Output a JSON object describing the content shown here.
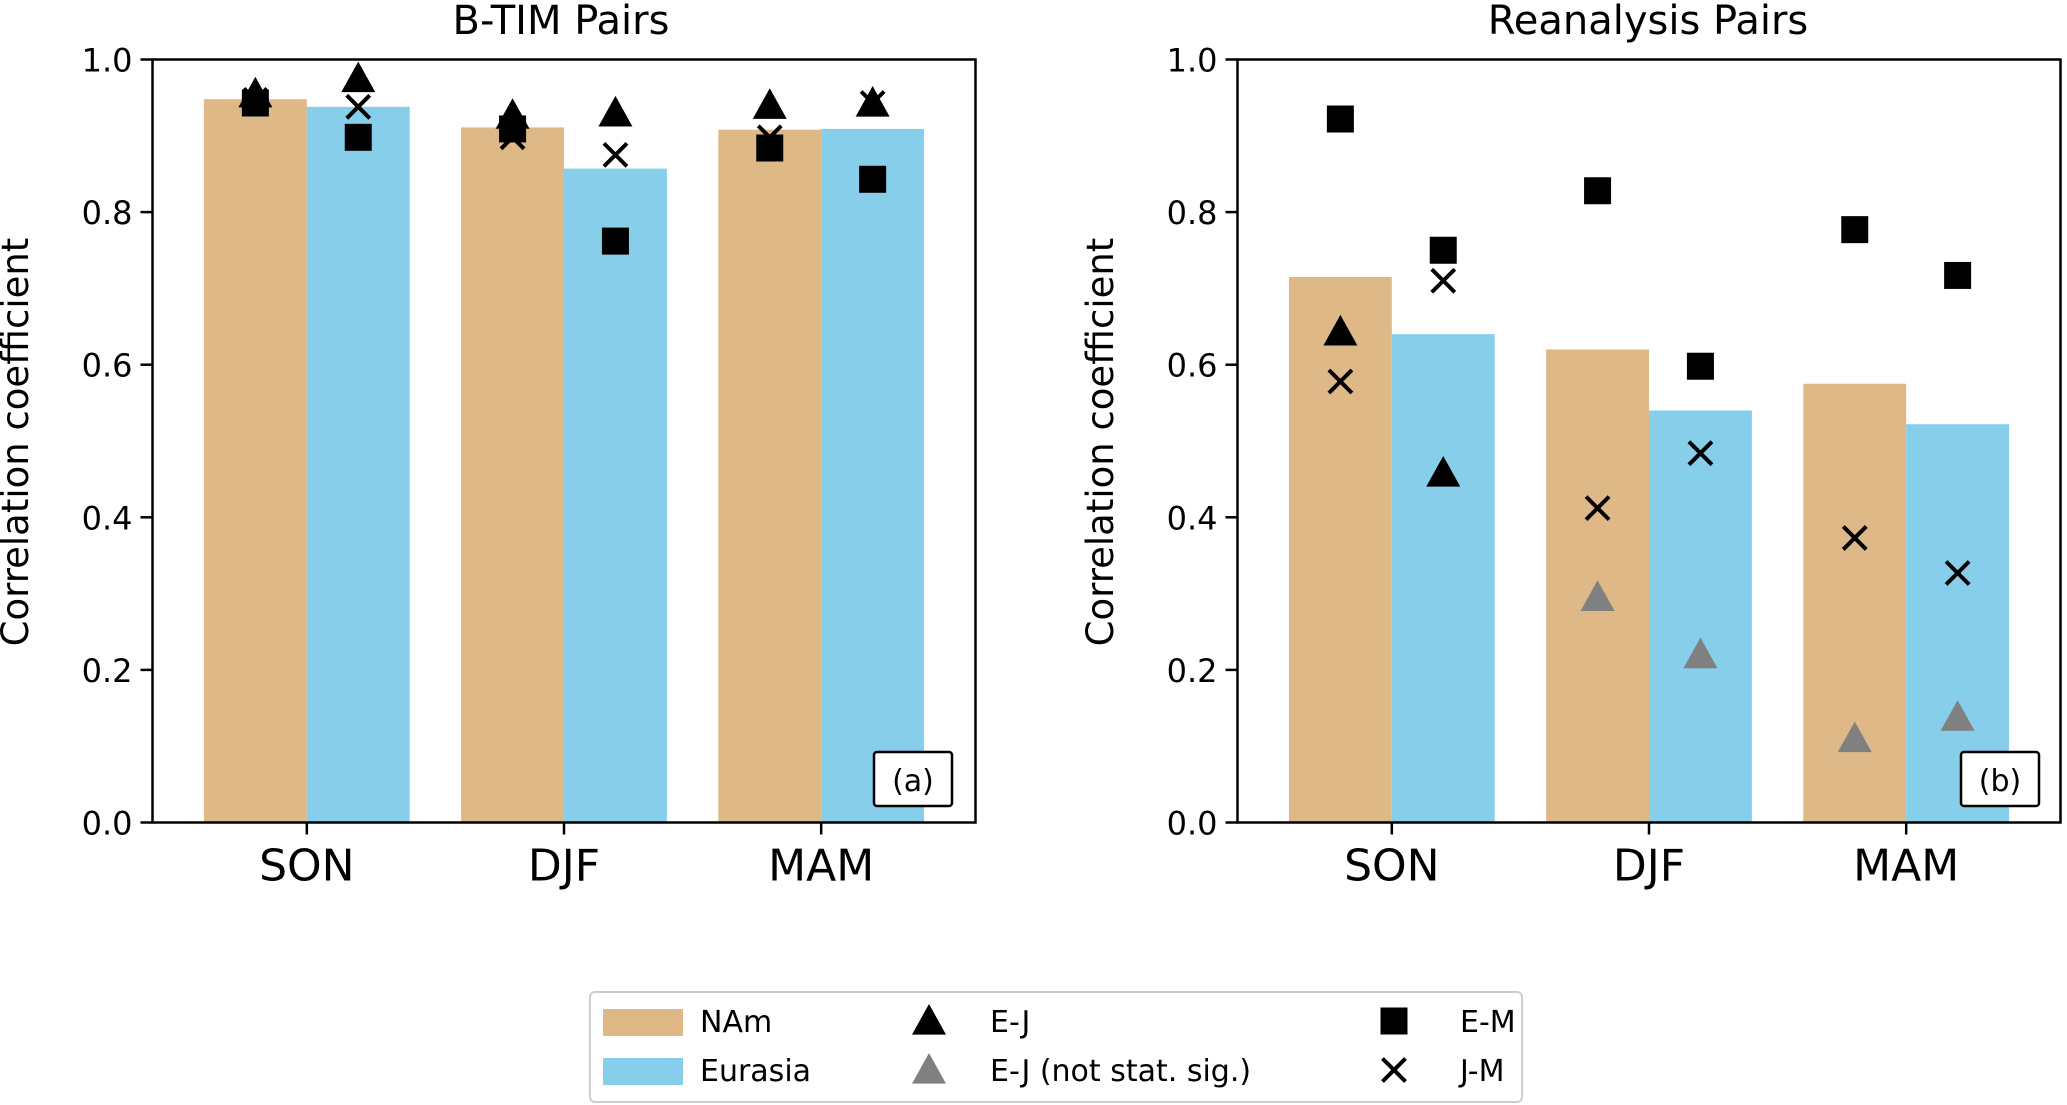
{
  "chart_data": [
    {
      "type": "bar",
      "panel": "(a)",
      "title": "B-TIM Pairs",
      "ylabel": "Correlation coefficient",
      "xlabel": "",
      "ylim": [
        0.0,
        1.0
      ],
      "yticks": [
        "0.0",
        "0.2",
        "0.4",
        "0.6",
        "0.8",
        "1.0"
      ],
      "yticks_values": [
        0.0,
        0.2,
        0.4,
        0.6,
        0.8,
        1.0
      ],
      "categories": [
        "SON",
        "DJF",
        "MAM"
      ],
      "grid": false,
      "bar_series": [
        {
          "name": "NAm",
          "color": "#deb887",
          "values": [
            0.948,
            0.911,
            0.908
          ]
        },
        {
          "name": "Eurasia",
          "color": "#87ceeb",
          "values": [
            0.938,
            0.857,
            0.909
          ]
        }
      ],
      "marker_series": [
        {
          "name": "E-J",
          "marker": "triangle",
          "points": [
            {
              "category": "SON",
              "group": "NAm",
              "value": 0.955,
              "significant": true
            },
            {
              "category": "SON",
              "group": "Eurasia",
              "value": 0.975,
              "significant": true
            },
            {
              "category": "DJF",
              "group": "NAm",
              "value": 0.927,
              "significant": true
            },
            {
              "category": "DJF",
              "group": "Eurasia",
              "value": 0.93,
              "significant": true
            },
            {
              "category": "MAM",
              "group": "NAm",
              "value": 0.94,
              "significant": true
            },
            {
              "category": "MAM",
              "group": "Eurasia",
              "value": 0.943,
              "significant": true
            }
          ]
        },
        {
          "name": "E-M",
          "marker": "square",
          "points": [
            {
              "category": "SON",
              "group": "NAm",
              "value": 0.943
            },
            {
              "category": "SON",
              "group": "Eurasia",
              "value": 0.898
            },
            {
              "category": "DJF",
              "group": "NAm",
              "value": 0.909
            },
            {
              "category": "DJF",
              "group": "Eurasia",
              "value": 0.762
            },
            {
              "category": "MAM",
              "group": "NAm",
              "value": 0.884
            },
            {
              "category": "MAM",
              "group": "Eurasia",
              "value": 0.843
            }
          ]
        },
        {
          "name": "J-M",
          "marker": "x",
          "points": [
            {
              "category": "SON",
              "group": "NAm",
              "value": 0.947
            },
            {
              "category": "SON",
              "group": "Eurasia",
              "value": 0.938
            },
            {
              "category": "DJF",
              "group": "NAm",
              "value": 0.898
            },
            {
              "category": "DJF",
              "group": "Eurasia",
              "value": 0.875
            },
            {
              "category": "MAM",
              "group": "NAm",
              "value": 0.898
            },
            {
              "category": "MAM",
              "group": "Eurasia",
              "value": 0.943
            }
          ]
        }
      ]
    },
    {
      "type": "bar",
      "panel": "(b)",
      "title": "Reanalysis Pairs",
      "ylabel": "Correlation coefficient",
      "xlabel": "",
      "ylim": [
        0.0,
        1.0
      ],
      "yticks": [
        "0.0",
        "0.2",
        "0.4",
        "0.6",
        "0.8",
        "1.0"
      ],
      "yticks_values": [
        0.0,
        0.2,
        0.4,
        0.6,
        0.8,
        1.0
      ],
      "categories": [
        "SON",
        "DJF",
        "MAM"
      ],
      "grid": false,
      "bar_series": [
        {
          "name": "NAm",
          "color": "#deb887",
          "values": [
            0.715,
            0.62,
            0.575
          ]
        },
        {
          "name": "Eurasia",
          "color": "#87ceeb",
          "values": [
            0.64,
            0.54,
            0.522
          ]
        }
      ],
      "marker_series": [
        {
          "name": "E-J",
          "marker": "triangle",
          "points": [
            {
              "category": "SON",
              "group": "NAm",
              "value": 0.643,
              "significant": true
            },
            {
              "category": "SON",
              "group": "Eurasia",
              "value": 0.458,
              "significant": true
            },
            {
              "category": "DJF",
              "group": "NAm",
              "value": 0.295,
              "significant": false
            },
            {
              "category": "DJF",
              "group": "Eurasia",
              "value": 0.22,
              "significant": false
            },
            {
              "category": "MAM",
              "group": "NAm",
              "value": 0.11,
              "significant": false
            },
            {
              "category": "MAM",
              "group": "Eurasia",
              "value": 0.138,
              "significant": false
            }
          ]
        },
        {
          "name": "E-M",
          "marker": "square",
          "points": [
            {
              "category": "SON",
              "group": "NAm",
              "value": 0.922
            },
            {
              "category": "SON",
              "group": "Eurasia",
              "value": 0.75
            },
            {
              "category": "DJF",
              "group": "NAm",
              "value": 0.828
            },
            {
              "category": "DJF",
              "group": "Eurasia",
              "value": 0.598
            },
            {
              "category": "MAM",
              "group": "NAm",
              "value": 0.777
            },
            {
              "category": "MAM",
              "group": "Eurasia",
              "value": 0.717
            }
          ]
        },
        {
          "name": "J-M",
          "marker": "x",
          "points": [
            {
              "category": "SON",
              "group": "NAm",
              "value": 0.578
            },
            {
              "category": "SON",
              "group": "Eurasia",
              "value": 0.71
            },
            {
              "category": "DJF",
              "group": "NAm",
              "value": 0.412
            },
            {
              "category": "DJF",
              "group": "Eurasia",
              "value": 0.484
            },
            {
              "category": "MAM",
              "group": "NAm",
              "value": 0.373
            },
            {
              "category": "MAM",
              "group": "Eurasia",
              "value": 0.327
            }
          ]
        }
      ]
    }
  ],
  "legend": {
    "placement": "bottom-center",
    "entries": [
      {
        "label": "NAm",
        "kind": "patch",
        "color": "#deb887"
      },
      {
        "label": "Eurasia",
        "kind": "patch",
        "color": "#87ceeb"
      },
      {
        "label": "E-J",
        "kind": "triangle",
        "color": "#000000"
      },
      {
        "label": "E-J (not stat. sig.)",
        "kind": "triangle",
        "color": "#808080"
      },
      {
        "label": "E-M",
        "kind": "square",
        "color": "#000000"
      },
      {
        "label": "J-M",
        "kind": "x",
        "color": "#000000"
      }
    ]
  },
  "colors": {
    "significant": "#000000",
    "not_significant": "#808080"
  }
}
